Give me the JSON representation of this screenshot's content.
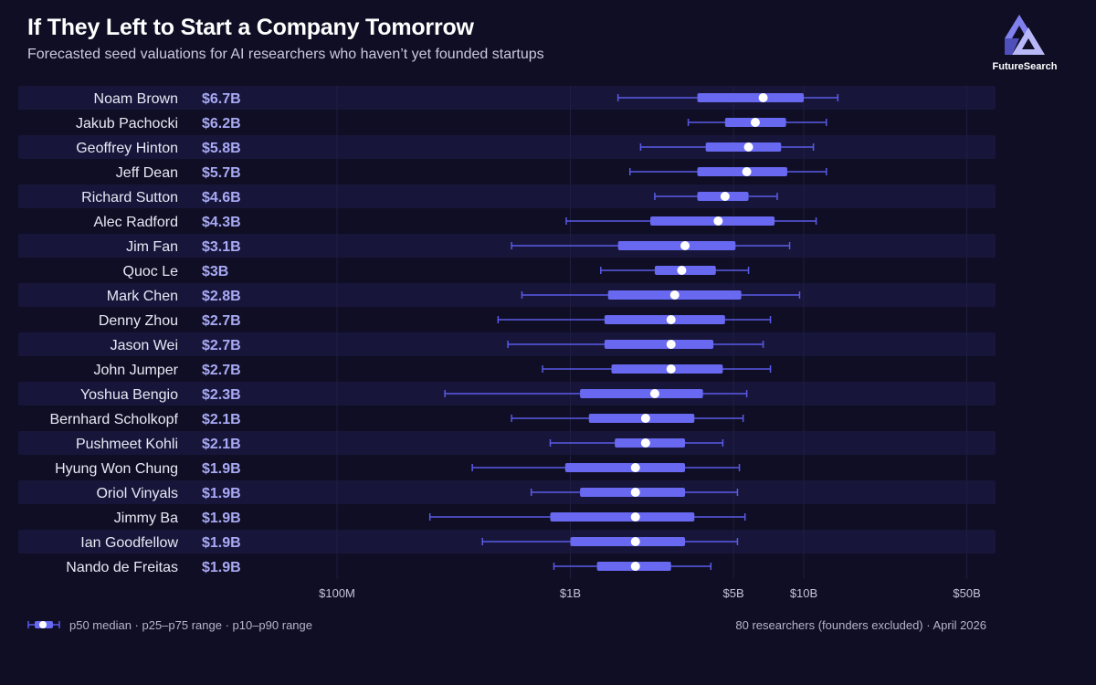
{
  "header": {
    "title": "If They Left to Start a Company Tomorrow",
    "subtitle": "Forecasted seed valuations for AI researchers who haven’t yet founded startups"
  },
  "brand": {
    "name": "FutureSearch",
    "logo_icon": "futuresearch-triangle-logo-icon"
  },
  "legend": {
    "text": "p50 median · p25–p75 range · p10–p90 range"
  },
  "footnote": {
    "text": "80 researchers (founders excluded) · April 2026"
  },
  "colors": {
    "background": "#0f0e24",
    "row_band": "#17163a",
    "box": "#6868f0",
    "whisker": "#5a5ae6",
    "median": "#ffffff",
    "value_label": "#a9a9f5",
    "gridline": "#1f1e40"
  },
  "chart_data": {
    "type": "box",
    "x_scale": "log",
    "x_ticks": [
      {
        "value": 100000000,
        "label": "$100M"
      },
      {
        "value": 1000000000,
        "label": "$1B"
      },
      {
        "value": 5000000000,
        "label": "$5B"
      },
      {
        "value": 10000000000,
        "label": "$10B"
      },
      {
        "value": 50000000000,
        "label": "$50B"
      }
    ],
    "grid": true,
    "rows": [
      {
        "name": "Noam Brown",
        "label": "$6.7B",
        "p10": 1600000000,
        "p25": 3500000000,
        "p50": 6700000000,
        "p75": 10000000000,
        "p90": 14000000000
      },
      {
        "name": "Jakub Pachocki",
        "label": "$6.2B",
        "p10": 3200000000,
        "p25": 4600000000,
        "p50": 6200000000,
        "p75": 8400000000,
        "p90": 12500000000
      },
      {
        "name": "Geoffrey Hinton",
        "label": "$5.8B",
        "p10": 2000000000,
        "p25": 3800000000,
        "p50": 5800000000,
        "p75": 8000000000,
        "p90": 11000000000
      },
      {
        "name": "Jeff Dean",
        "label": "$5.7B",
        "p10": 1800000000,
        "p25": 3500000000,
        "p50": 5700000000,
        "p75": 8500000000,
        "p90": 12500000000
      },
      {
        "name": "Richard Sutton",
        "label": "$4.6B",
        "p10": 2300000000,
        "p25": 3500000000,
        "p50": 4600000000,
        "p75": 5800000000,
        "p90": 7700000000
      },
      {
        "name": "Alec Radford",
        "label": "$4.3B",
        "p10": 960000000,
        "p25": 2200000000,
        "p50": 4300000000,
        "p75": 7500000000,
        "p90": 11300000000
      },
      {
        "name": "Jim Fan",
        "label": "$3.1B",
        "p10": 560000000,
        "p25": 1600000000,
        "p50": 3100000000,
        "p75": 5100000000,
        "p90": 8700000000
      },
      {
        "name": "Quoc Le",
        "label": "$3B",
        "p10": 1350000000,
        "p25": 2300000000,
        "p50": 3000000000,
        "p75": 4200000000,
        "p90": 5800000000
      },
      {
        "name": "Mark Chen",
        "label": "$2.8B",
        "p10": 620000000,
        "p25": 1450000000,
        "p50": 2800000000,
        "p75": 5400000000,
        "p90": 9600000000
      },
      {
        "name": "Denny Zhou",
        "label": "$2.7B",
        "p10": 490000000,
        "p25": 1400000000,
        "p50": 2700000000,
        "p75": 4600000000,
        "p90": 7200000000
      },
      {
        "name": "Jason Wei",
        "label": "$2.7B",
        "p10": 540000000,
        "p25": 1400000000,
        "p50": 2700000000,
        "p75": 4100000000,
        "p90": 6700000000
      },
      {
        "name": "John Jumper",
        "label": "$2.7B",
        "p10": 760000000,
        "p25": 1500000000,
        "p50": 2700000000,
        "p75": 4500000000,
        "p90": 7200000000
      },
      {
        "name": "Yoshua Bengio",
        "label": "$2.3B",
        "p10": 290000000,
        "p25": 1100000000,
        "p50": 2300000000,
        "p75": 3700000000,
        "p90": 5700000000
      },
      {
        "name": "Bernhard Scholkopf",
        "label": "$2.1B",
        "p10": 560000000,
        "p25": 1200000000,
        "p50": 2100000000,
        "p75": 3400000000,
        "p90": 5500000000
      },
      {
        "name": "Pushmeet Kohli",
        "label": "$2.1B",
        "p10": 820000000,
        "p25": 1550000000,
        "p50": 2100000000,
        "p75": 3100000000,
        "p90": 4500000000
      },
      {
        "name": "Hyung Won Chung",
        "label": "$1.9B",
        "p10": 380000000,
        "p25": 950000000,
        "p50": 1900000000,
        "p75": 3100000000,
        "p90": 5300000000
      },
      {
        "name": "Oriol Vinyals",
        "label": "$1.9B",
        "p10": 680000000,
        "p25": 1100000000,
        "p50": 1900000000,
        "p75": 3100000000,
        "p90": 5200000000
      },
      {
        "name": "Jimmy Ba",
        "label": "$1.9B",
        "p10": 250000000,
        "p25": 820000000,
        "p50": 1900000000,
        "p75": 3400000000,
        "p90": 5600000000
      },
      {
        "name": "Ian Goodfellow",
        "label": "$1.9B",
        "p10": 420000000,
        "p25": 1000000000,
        "p50": 1900000000,
        "p75": 3100000000,
        "p90": 5200000000
      },
      {
        "name": "Nando de Freitas",
        "label": "$1.9B",
        "p10": 850000000,
        "p25": 1300000000,
        "p50": 1900000000,
        "p75": 2700000000,
        "p90": 4000000000
      }
    ]
  }
}
